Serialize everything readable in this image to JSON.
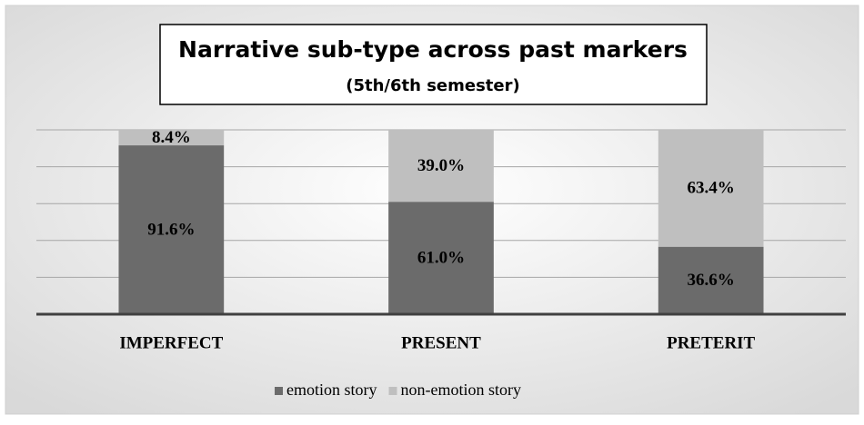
{
  "chart_data": {
    "type": "stacked_bar",
    "title": "Narrative sub-type across past markers",
    "subtitle": "(5th/6th semester)",
    "categories": [
      "IMPERFECT",
      "PRESENT",
      "PRETERIT"
    ],
    "series": [
      {
        "name": "emotion story",
        "color": "#6b6b6b",
        "values": [
          91.6,
          61.0,
          36.6
        ],
        "value_labels": [
          "91.6%",
          "61.0%",
          "36.6%"
        ]
      },
      {
        "name": "non-emotion story",
        "color": "#bfbfbf",
        "values": [
          8.4,
          39.0,
          63.4
        ],
        "value_labels": [
          "8.4%",
          "39.0%",
          "63.4%"
        ]
      }
    ],
    "ylim": [
      0,
      100
    ],
    "yticks": [
      0,
      20,
      40,
      60,
      80,
      100
    ],
    "grid": true,
    "legend": "bottom"
  }
}
